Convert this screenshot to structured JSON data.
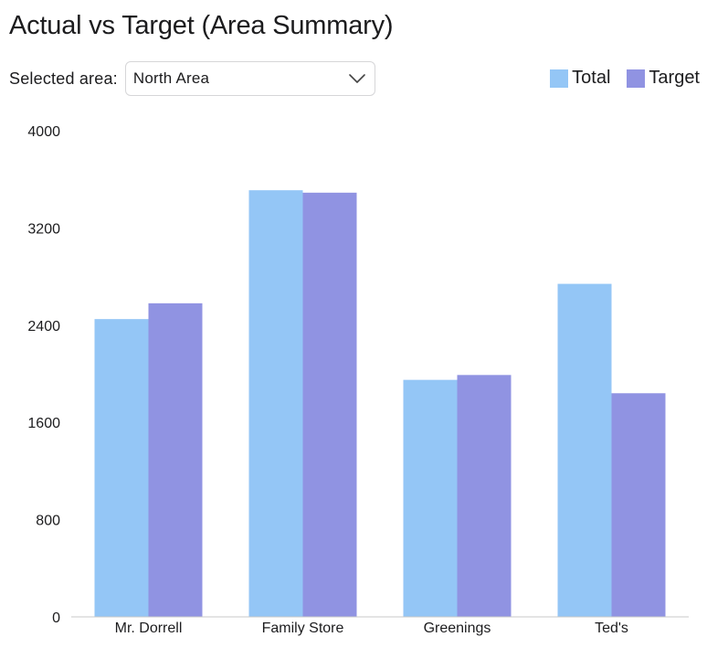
{
  "header": {
    "title": "Actual vs Target (Area Summary)"
  },
  "controls": {
    "area_label": "Selected area:",
    "area_value": "North Area"
  },
  "icons": {
    "dropdown": "chevron-down-icon"
  },
  "colors": {
    "total": "#94c6f6",
    "target": "#9093e2",
    "axis": "#c8c8c8"
  },
  "chart_data": {
    "type": "bar",
    "categories": [
      "Mr. Dorrell",
      "Family Store",
      "Greenings",
      "Ted's"
    ],
    "series": [
      {
        "name": "Total",
        "values": [
          2450,
          3510,
          1950,
          2740
        ]
      },
      {
        "name": "Target",
        "values": [
          2580,
          3490,
          1990,
          1840
        ]
      }
    ],
    "yticks": [
      "0",
      "800",
      "1600",
      "2400",
      "3200",
      "4000"
    ],
    "ylim": [
      0,
      4000
    ],
    "title": "",
    "xlabel": "",
    "ylabel": "",
    "legend": "top-right",
    "grid": false
  }
}
